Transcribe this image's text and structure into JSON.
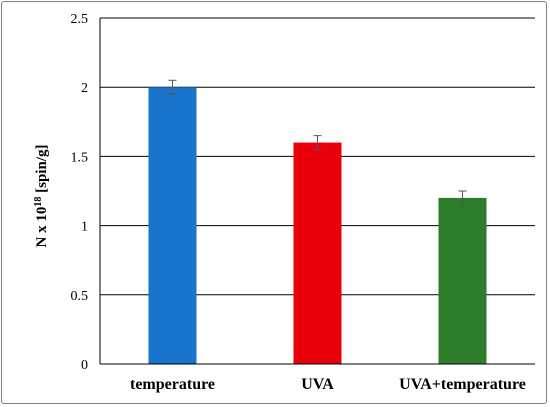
{
  "chart_data": {
    "type": "bar",
    "title": "",
    "xlabel": "",
    "ylabel": {
      "prefix": "N x 10",
      "superscript": "18",
      "suffix": " [spin/g]"
    },
    "categories": [
      "temperature",
      "UVA",
      "UVA+temperature"
    ],
    "values": [
      2.0,
      1.6,
      1.2
    ],
    "errors": [
      0.05,
      0.05,
      0.05
    ],
    "colors": [
      "#1874CD",
      "#E8000B",
      "#2E7D2A"
    ],
    "ylim": [
      0,
      2.5
    ],
    "yticks": [
      "0",
      "0.5",
      "1",
      "1.5",
      "2",
      "2.5"
    ],
    "grid": true
  }
}
